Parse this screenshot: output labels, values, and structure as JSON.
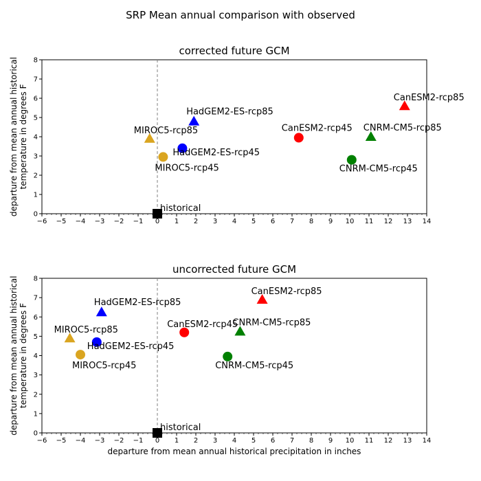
{
  "figure": {
    "title": "SRP Mean annual comparison with observed"
  },
  "chart_data": [
    {
      "type": "scatter",
      "title": "corrected future GCM",
      "xlabel": "",
      "ylabel": "departure from mean annual historical\ntemperature in degrees F",
      "xlim": [
        -6,
        14
      ],
      "ylim": [
        0,
        8
      ],
      "xticks": [
        -6,
        -5,
        -4,
        -3,
        -2,
        -1,
        0,
        1,
        2,
        3,
        4,
        5,
        6,
        7,
        8,
        9,
        10,
        11,
        12,
        13,
        14
      ],
      "yticks": [
        0,
        1,
        2,
        3,
        4,
        5,
        6,
        7,
        8
      ],
      "reference_line": {
        "x": 0,
        "style": "dashed",
        "color": "#808080"
      },
      "points": [
        {
          "label": "historical",
          "x": 0.0,
          "y": 0.0,
          "marker": "square",
          "color": "#000000"
        },
        {
          "label": "MIROC5-rcp45",
          "x": 0.3,
          "y": 2.95,
          "marker": "circle",
          "color": "#DAA520"
        },
        {
          "label": "MIROC5-rcp85",
          "x": -0.4,
          "y": 3.9,
          "marker": "triangle",
          "color": "#DAA520"
        },
        {
          "label": "HadGEM2-ES-rcp45",
          "x": 1.3,
          "y": 3.4,
          "marker": "circle",
          "color": "#0000FF"
        },
        {
          "label": "HadGEM2-ES-rcp85",
          "x": 1.9,
          "y": 4.8,
          "marker": "triangle",
          "color": "#0000FF"
        },
        {
          "label": "CanESM2-rcp45",
          "x": 7.35,
          "y": 3.95,
          "marker": "circle",
          "color": "#FF0000"
        },
        {
          "label": "CanESM2-rcp85",
          "x": 12.85,
          "y": 5.6,
          "marker": "triangle",
          "color": "#FF0000"
        },
        {
          "label": "CNRM-CM5-rcp45",
          "x": 10.1,
          "y": 2.8,
          "marker": "circle",
          "color": "#008000"
        },
        {
          "label": "CNRM-CM5-rcp85",
          "x": 11.1,
          "y": 4.0,
          "marker": "triangle",
          "color": "#008000"
        }
      ]
    },
    {
      "type": "scatter",
      "title": "uncorrected future GCM",
      "xlabel": "departure from mean annual historical precipitation in inches",
      "ylabel": "departure from mean annual historical\ntemperature in degrees F",
      "xlim": [
        -6,
        14
      ],
      "ylim": [
        0,
        8
      ],
      "xticks": [
        -6,
        -5,
        -4,
        -3,
        -2,
        -1,
        0,
        1,
        2,
        3,
        4,
        5,
        6,
        7,
        8,
        9,
        10,
        11,
        12,
        13,
        14
      ],
      "yticks": [
        0,
        1,
        2,
        3,
        4,
        5,
        6,
        7,
        8
      ],
      "reference_line": {
        "x": 0,
        "style": "dashed",
        "color": "#808080"
      },
      "points": [
        {
          "label": "historical",
          "x": 0.0,
          "y": 0.0,
          "marker": "square",
          "color": "#000000"
        },
        {
          "label": "MIROC5-rcp45",
          "x": -4.0,
          "y": 4.05,
          "marker": "circle",
          "color": "#DAA520"
        },
        {
          "label": "MIROC5-rcp85",
          "x": -4.55,
          "y": 4.9,
          "marker": "triangle",
          "color": "#DAA520"
        },
        {
          "label": "HadGEM2-ES-rcp45",
          "x": -3.15,
          "y": 4.7,
          "marker": "circle",
          "color": "#0000FF"
        },
        {
          "label": "HadGEM2-ES-rcp85",
          "x": -2.9,
          "y": 6.25,
          "marker": "triangle",
          "color": "#0000FF"
        },
        {
          "label": "CanESM2-rcp45",
          "x": 1.4,
          "y": 5.2,
          "marker": "circle",
          "color": "#FF0000"
        },
        {
          "label": "CanESM2-rcp85",
          "x": 5.45,
          "y": 6.9,
          "marker": "triangle",
          "color": "#FF0000"
        },
        {
          "label": "CNRM-CM5-rcp45",
          "x": 3.65,
          "y": 3.95,
          "marker": "circle",
          "color": "#008000"
        },
        {
          "label": "CNRM-CM5-rcp85",
          "x": 4.3,
          "y": 5.25,
          "marker": "triangle",
          "color": "#008000"
        }
      ]
    }
  ]
}
